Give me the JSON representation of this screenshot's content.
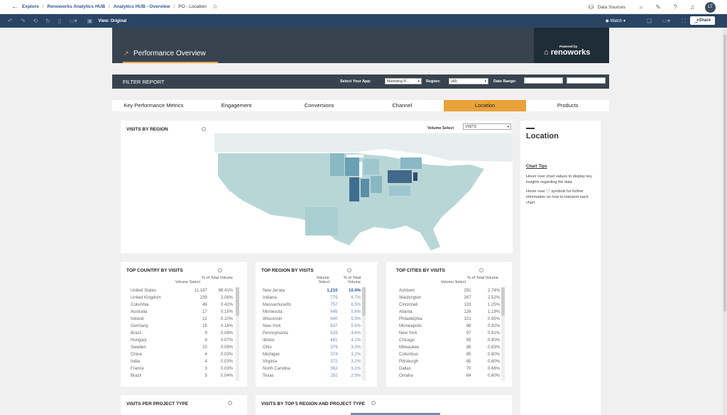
{
  "breadcrumb": {
    "items": [
      "Explore",
      "Renoworks Analytics HUB",
      "Analytics HUB - Overview"
    ],
    "current": "PO - Location"
  },
  "top_right": {
    "data_sources": "Data Sources",
    "avatar": "LT"
  },
  "toolbar": {
    "view": "View: Original",
    "watch": "Watch",
    "share": "Share"
  },
  "dashboard": {
    "title": "Performance Overview",
    "logo_powered": "Powered by",
    "logo_name": "renoworks",
    "filter": {
      "title": "FILTER REPORT",
      "app_label": "Select Your App:",
      "app_value": "Marketing R...",
      "region_label": "Region:",
      "region_value": "(All)",
      "date_label": "Date Range:"
    },
    "tabs": [
      "Key Performance Metrics",
      "Engagement",
      "Conversions",
      "Channel",
      "Location",
      "Products"
    ],
    "map": {
      "title": "VISITS BY REGION",
      "volume_label": "Volume Select",
      "volume_value": "VISITS"
    },
    "side": {
      "title": "Location",
      "tips_title": "Chart Tips",
      "tip1": "Hover over chart values to display key insights regarding the data",
      "tip2": "Hover over ⓘ symbols for further information on how to interpret each chart"
    },
    "country": {
      "title": "TOP COUNTRY BY VISITS",
      "col1": "Volume Select",
      "col2": "% of Total Volume",
      "rows": [
        [
          "United States",
          "11,187",
          "96.41%"
        ],
        [
          "United Kingdom",
          "239",
          "2.06%"
        ],
        [
          "Columbia",
          "49",
          "0.42%"
        ],
        [
          "Australia",
          "17",
          "0.15%"
        ],
        [
          "Ireland",
          "12",
          "0.10%"
        ],
        [
          "Germany",
          "18",
          "0.16%"
        ],
        [
          "Brazil",
          "9",
          "0.08%"
        ],
        [
          "Hungary",
          "8",
          "0.07%"
        ],
        [
          "Sweden",
          "10",
          "0.09%"
        ],
        [
          "China",
          "4",
          "0.03%"
        ],
        [
          "India",
          "4",
          "0.03%"
        ],
        [
          "France",
          "3",
          "0.03%"
        ],
        [
          "Brazil",
          "5",
          "0.04%"
        ]
      ]
    },
    "region": {
      "title": "TOP REGION BY VISITS",
      "col1": "Volume Select",
      "col2": "% of Total Volume",
      "rows": [
        [
          "New Jersey",
          "1,210",
          "10.4%"
        ],
        [
          "Indiana",
          "779",
          "6.7%"
        ],
        [
          "Massachusetts",
          "757",
          "6.5%"
        ],
        [
          "Minnesota",
          "645",
          "5.6%"
        ],
        [
          "Wisconsin",
          "640",
          "5.5%"
        ],
        [
          "New York",
          "637",
          "5.5%"
        ],
        [
          "Pennsylvania",
          "533",
          "4.6%"
        ],
        [
          "Illinois",
          "481",
          "4.1%"
        ],
        [
          "Ohio",
          "379",
          "3.3%"
        ],
        [
          "Michigan",
          "374",
          "3.2%"
        ],
        [
          "Virginia",
          "372",
          "3.2%"
        ],
        [
          "North Carolina",
          "362",
          "3.1%"
        ],
        [
          "Texas",
          "292",
          "2.5%"
        ]
      ]
    },
    "cities": {
      "title": "TOP CITIES BY VISITS",
      "col1": "Volume Select",
      "col2": "% of Total Volume",
      "rows": [
        [
          "Ashburn",
          "291",
          "2.74%"
        ],
        [
          "Washington",
          "267",
          "2.52%"
        ],
        [
          "Cincinnati",
          "133",
          "1.25%"
        ],
        [
          "Atlanta",
          "126",
          "1.19%"
        ],
        [
          "Philadelphia",
          "101",
          "0.95%"
        ],
        [
          "Minneapolis",
          "98",
          "0.92%"
        ],
        [
          "New York",
          "97",
          "0.91%"
        ],
        [
          "Chicago",
          "95",
          "0.90%"
        ],
        [
          "Milwaukee",
          "88",
          "0.83%"
        ],
        [
          "Columbus",
          "85",
          "0.80%"
        ],
        [
          "Pittsburgh",
          "85",
          "0.80%"
        ],
        [
          "Dallas",
          "70",
          "0.66%"
        ],
        [
          "Omaha",
          "64",
          "0.60%"
        ]
      ]
    },
    "bottom1": {
      "title": "VISITS PER PROJECT TYPE"
    },
    "bottom2": {
      "title": "VISITS BY TOP 5 REGION AND PROJECT TYPE"
    }
  },
  "colors": {
    "accent": "#eaa23a",
    "header": "#37444f",
    "toolbar": "#2a4464"
  }
}
